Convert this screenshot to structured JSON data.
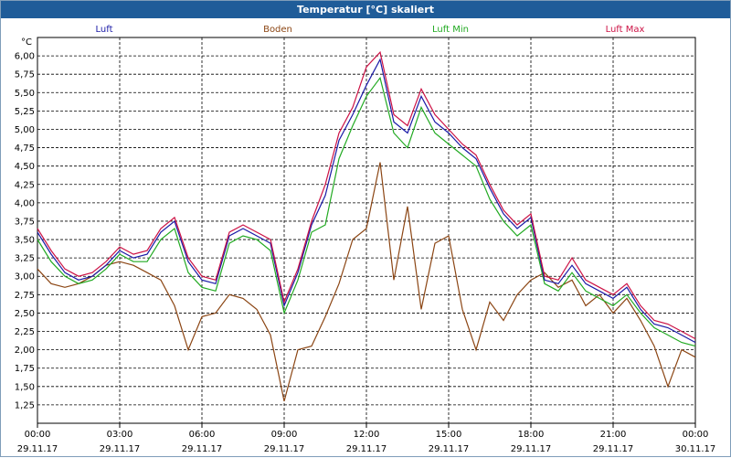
{
  "window": {
    "title": "Temperatur [°C] skaliert"
  },
  "chart_data": {
    "type": "line",
    "title": "Temperatur [°C] skaliert",
    "ylabel": "°C",
    "xlabel": "",
    "ylim": [
      1.0,
      6.25
    ],
    "xlim": [
      0,
      24
    ],
    "yticks": [
      "6,00",
      "5,75",
      "5,50",
      "5,25",
      "5,00",
      "4,75",
      "4,50",
      "4,25",
      "4,00",
      "3,75",
      "3,50",
      "3,25",
      "3,00",
      "2,75",
      "2,50",
      "2,25",
      "2,00",
      "1,75",
      "1,50",
      "1,25"
    ],
    "ytick_values": [
      6.0,
      5.75,
      5.5,
      5.25,
      5.0,
      4.75,
      4.5,
      4.25,
      4.0,
      3.75,
      3.5,
      3.25,
      3.0,
      2.75,
      2.5,
      2.25,
      2.0,
      1.75,
      1.5,
      1.25
    ],
    "xticks": [
      {
        "time": "00:00",
        "date": "29.11.17"
      },
      {
        "time": "03:00",
        "date": "29.11.17"
      },
      {
        "time": "06:00",
        "date": "29.11.17"
      },
      {
        "time": "09:00",
        "date": "29.11.17"
      },
      {
        "time": "12:00",
        "date": "29.11.17"
      },
      {
        "time": "15:00",
        "date": "29.11.17"
      },
      {
        "time": "18:00",
        "date": "29.11.17"
      },
      {
        "time": "21:00",
        "date": "29.11.17"
      },
      {
        "time": "00:00",
        "date": "30.11.17"
      }
    ],
    "grid": true,
    "series": [
      {
        "name": "Luft",
        "color": "#1a1aa6",
        "x": [
          0,
          0.5,
          1,
          1.5,
          2,
          2.5,
          3,
          3.5,
          4,
          4.5,
          5,
          5.5,
          6,
          6.5,
          7,
          7.5,
          8,
          8.5,
          9,
          9.5,
          10,
          10.5,
          11,
          11.5,
          12,
          12.5,
          13,
          13.5,
          14,
          14.5,
          15,
          15.5,
          16,
          16.5,
          17,
          17.5,
          18,
          18.5,
          19,
          19.5,
          20,
          20.5,
          21,
          21.5,
          22,
          22.5,
          23,
          23.5,
          24
        ],
        "y": [
          3.6,
          3.3,
          3.05,
          2.95,
          3.0,
          3.15,
          3.35,
          3.25,
          3.3,
          3.6,
          3.75,
          3.2,
          2.95,
          2.9,
          3.55,
          3.65,
          3.55,
          3.45,
          2.6,
          3.05,
          3.7,
          4.1,
          4.85,
          5.2,
          5.6,
          5.95,
          5.1,
          4.95,
          5.45,
          5.1,
          4.95,
          4.75,
          4.6,
          4.2,
          3.85,
          3.65,
          3.8,
          2.95,
          2.9,
          3.15,
          2.9,
          2.8,
          2.7,
          2.85,
          2.55,
          2.35,
          2.3,
          2.2,
          2.1
        ]
      },
      {
        "name": "Boden",
        "color": "#8b4513",
        "x": [
          0,
          0.5,
          1,
          1.5,
          2,
          2.5,
          3,
          3.5,
          4,
          4.5,
          5,
          5.5,
          6,
          6.5,
          7,
          7.5,
          8,
          8.5,
          9,
          9.5,
          10,
          10.5,
          11,
          11.5,
          12,
          12.5,
          13,
          13.5,
          14,
          14.5,
          15,
          15.5,
          16,
          16.5,
          17,
          17.5,
          18,
          18.5,
          19,
          19.5,
          20,
          20.5,
          21,
          21.5,
          22,
          22.5,
          23,
          23.5,
          24
        ],
        "y": [
          3.1,
          2.9,
          2.85,
          2.9,
          3.0,
          3.15,
          3.2,
          3.15,
          3.05,
          2.95,
          2.6,
          2.0,
          2.45,
          2.5,
          2.75,
          2.7,
          2.55,
          2.2,
          1.3,
          2.0,
          2.05,
          2.45,
          2.9,
          3.5,
          3.65,
          4.55,
          2.95,
          3.95,
          2.55,
          3.45,
          3.55,
          2.55,
          2.0,
          2.65,
          2.4,
          2.75,
          2.95,
          3.05,
          2.85,
          2.95,
          2.6,
          2.75,
          2.5,
          2.7,
          2.4,
          2.05,
          1.5,
          2.0,
          1.9
        ]
      },
      {
        "name": "Luft Min",
        "color": "#22aa22",
        "x": [
          0,
          0.5,
          1,
          1.5,
          2,
          2.5,
          3,
          3.5,
          4,
          4.5,
          5,
          5.5,
          6,
          6.5,
          7,
          7.5,
          8,
          8.5,
          9,
          9.5,
          10,
          10.5,
          11,
          11.5,
          12,
          12.5,
          13,
          13.5,
          14,
          14.5,
          15,
          15.5,
          16,
          16.5,
          17,
          17.5,
          18,
          18.5,
          19,
          19.5,
          20,
          20.5,
          21,
          21.5,
          22,
          22.5,
          23,
          23.5,
          24
        ],
        "y": [
          3.5,
          3.2,
          3.0,
          2.9,
          2.95,
          3.1,
          3.3,
          3.2,
          3.2,
          3.5,
          3.65,
          3.05,
          2.85,
          2.8,
          3.45,
          3.55,
          3.5,
          3.35,
          2.5,
          2.95,
          3.6,
          3.7,
          4.6,
          5.05,
          5.45,
          5.7,
          4.95,
          4.75,
          5.3,
          4.95,
          4.8,
          4.65,
          4.5,
          4.05,
          3.75,
          3.55,
          3.7,
          2.9,
          2.8,
          3.05,
          2.8,
          2.7,
          2.6,
          2.75,
          2.5,
          2.3,
          2.2,
          2.1,
          2.05
        ]
      },
      {
        "name": "Luft Max",
        "color": "#cc1144",
        "x": [
          0,
          0.5,
          1,
          1.5,
          2,
          2.5,
          3,
          3.5,
          4,
          4.5,
          5,
          5.5,
          6,
          6.5,
          7,
          7.5,
          8,
          8.5,
          9,
          9.5,
          10,
          10.5,
          11,
          11.5,
          12,
          12.5,
          13,
          13.5,
          14,
          14.5,
          15,
          15.5,
          16,
          16.5,
          17,
          17.5,
          18,
          18.5,
          19,
          19.5,
          20,
          20.5,
          21,
          21.5,
          22,
          22.5,
          23,
          23.5,
          24
        ],
        "y": [
          3.65,
          3.35,
          3.1,
          3.0,
          3.05,
          3.2,
          3.4,
          3.3,
          3.35,
          3.65,
          3.8,
          3.25,
          3.0,
          2.95,
          3.6,
          3.7,
          3.6,
          3.5,
          2.65,
          3.1,
          3.75,
          4.25,
          4.95,
          5.3,
          5.85,
          6.05,
          5.2,
          5.05,
          5.55,
          5.2,
          5.0,
          4.8,
          4.65,
          4.25,
          3.9,
          3.7,
          3.85,
          3.0,
          2.95,
          3.25,
          2.95,
          2.85,
          2.75,
          2.9,
          2.6,
          2.4,
          2.35,
          2.25,
          2.15
        ]
      }
    ]
  }
}
